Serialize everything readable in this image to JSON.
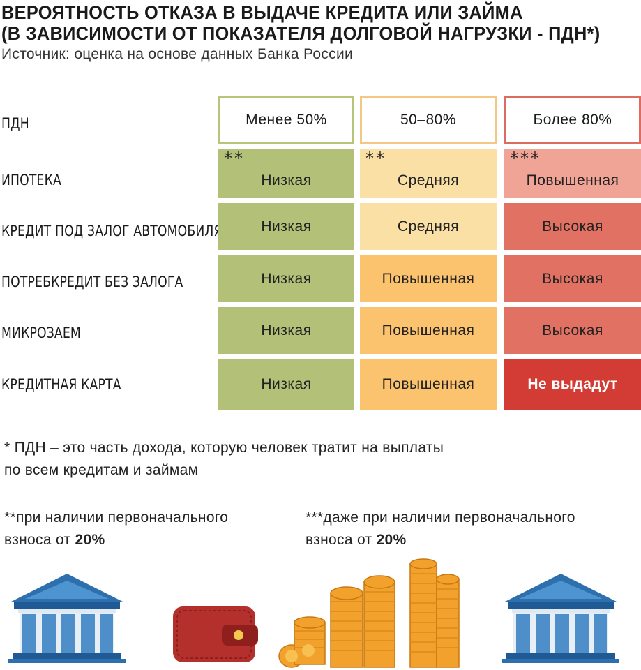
{
  "title_lines": [
    "ВЕРОЯТНОСТЬ ОТКАЗА В ВЫДАЧЕ КРЕДИТА ИЛИ ЗАЙМА",
    "(В ЗАВИСИМОСТИ ОТ ПОКАЗАТЕЛЯ ДОЛГОВОЙ НАГРУЗКИ - ПДН*)"
  ],
  "source": "Источник: оценка на основе данных Банка России",
  "table": {
    "header_label": "ПДН",
    "columns": [
      {
        "label": "Менее 50%",
        "border_color": "#b5c57a"
      },
      {
        "label": "50–80%",
        "border_color": "#f5c684"
      },
      {
        "label": "Более 80%",
        "border_color": "#dc6b60"
      }
    ],
    "rows": [
      {
        "label": "Ипотека",
        "cells": [
          "Низкая",
          "Средняя",
          "Повышенная"
        ],
        "stars": [
          "**",
          "**",
          "***"
        ]
      },
      {
        "label": "Кредит под залог автомобиля",
        "cells": [
          "Низкая",
          "Средняя",
          "Высокая"
        ]
      },
      {
        "label": "Потребкредит без залога",
        "cells": [
          "Низкая",
          "Повышенная",
          "Высокая"
        ]
      },
      {
        "label": "Микрозаем",
        "cells": [
          "Низкая",
          "Повышенная",
          "Высокая"
        ]
      },
      {
        "label": "Кредитная карта",
        "cells": [
          "Низкая",
          "Повышенная",
          "Не выдадут"
        ]
      }
    ],
    "cell_colors": [
      [
        "#b2c177",
        "#fbe0a6",
        "#efa496"
      ],
      [
        "#b2c177",
        "#fbe0a6",
        "#e07163"
      ],
      [
        "#b2c177",
        "#fcc36e",
        "#e07163"
      ],
      [
        "#b2c177",
        "#fcc36e",
        "#e07163"
      ],
      [
        "#b2c177",
        "#fcc36e",
        "#d33c34"
      ]
    ]
  },
  "footnotes": {
    "pdn_line1": "* ПДН – это часть дохода, которую человек тратит на выплаты",
    "pdn_line2": "по всем кредитам и займам",
    "note2_line1": "**при наличии первоначального",
    "note2_prefix": "взноса от ",
    "note2_value": "20%",
    "note3_line1": "***даже при наличии первоначального",
    "note3_prefix": "взноса от ",
    "note3_value": "20%"
  },
  "illustrations": [
    "bank-building-icon",
    "wallet-icon",
    "coin-stacks-icon",
    "bank-building-icon"
  ],
  "colors": {
    "green": "#b2c177",
    "light_orange": "#fbe0a6",
    "orange": "#fcc36e",
    "pink": "#efa496",
    "red": "#e07163",
    "dark_red": "#d33c34",
    "bank_blue": "#2e6fae",
    "wallet_red": "#b4302c",
    "coin_gold": "#f2a12c"
  }
}
